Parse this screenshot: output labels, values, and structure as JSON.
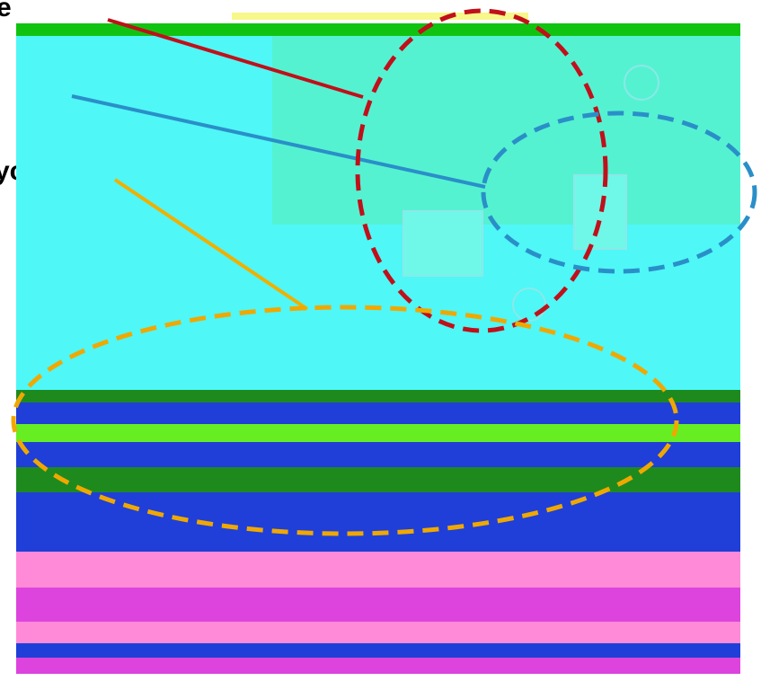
{
  "labels": {
    "label_1": "e",
    "label_2": "ycle"
  },
  "colors": {
    "cyan_bg": "#4ff7f7",
    "mint_panel": "#55f2d2",
    "top_green_bar": "#11c311",
    "top_yellow_strip": "#f7f78a",
    "dark_green": "#1e8a1e",
    "blue": "#1f3fd8",
    "lime": "#66ee22",
    "magenta": "#dd44dd",
    "pink": "#ff8ad8",
    "red_dash": "#c0101a",
    "blue_dash": "#2a8fc8",
    "orange_dash": "#f0a800",
    "red_line": "#c0101a",
    "blue_line": "#2a8fc8",
    "orange_line": "#f0b000"
  },
  "icons": [
    "circle-symbol-icon",
    "rectangle-block-icon"
  ]
}
